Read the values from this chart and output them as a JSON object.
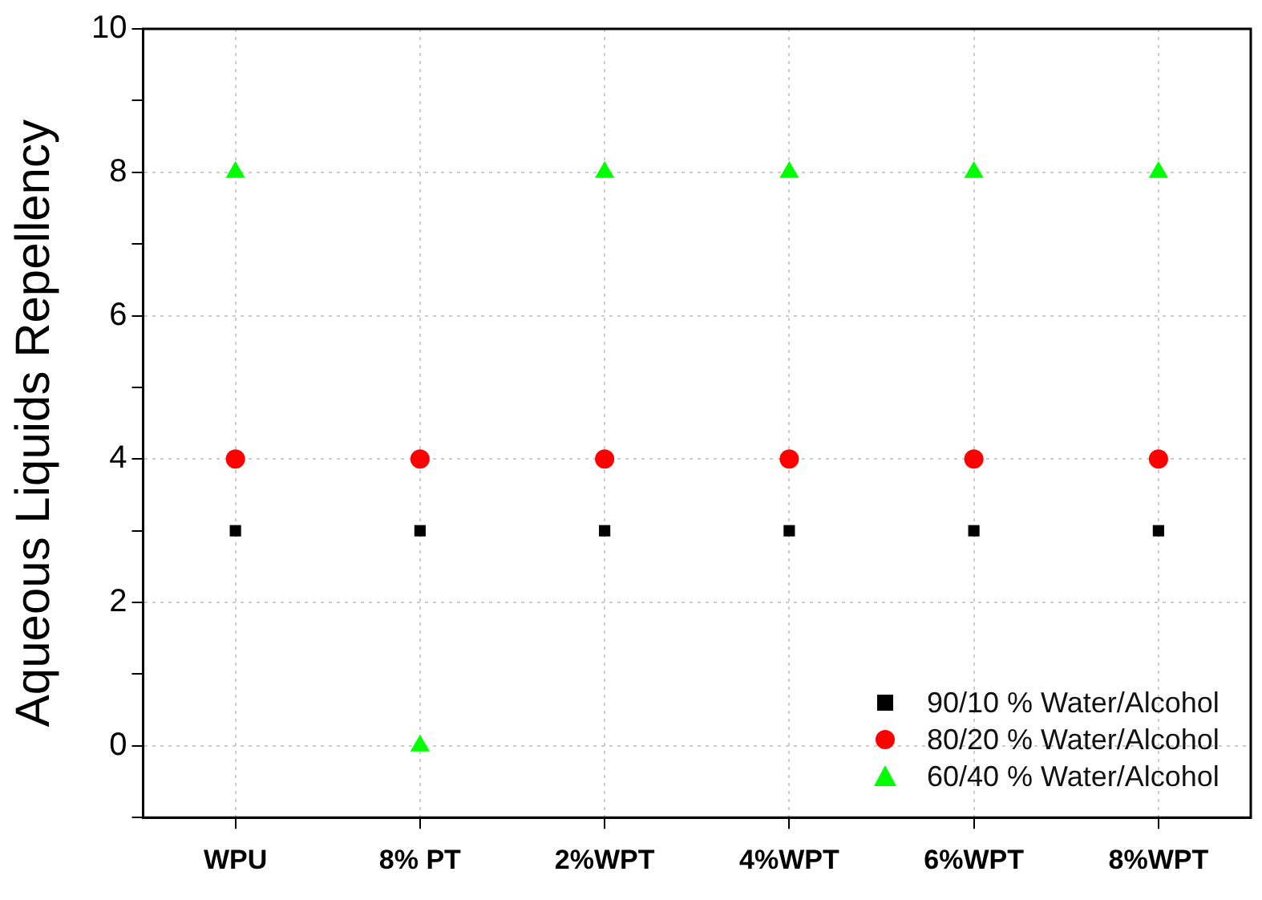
{
  "chart_data": {
    "type": "scatter",
    "ylabel": "Aqueous Liquids Repellency",
    "categories": [
      "WPU",
      "8% PT",
      "2%WPT",
      "4%WPT",
      "6%WPT",
      "8%WPT"
    ],
    "series": [
      {
        "name": "90/10 % Water/Alcohol",
        "color": "#000000",
        "marker": "square",
        "values": [
          3,
          3,
          3,
          3,
          3,
          3
        ]
      },
      {
        "name": "80/20 % Water/Alcohol",
        "color": "#ff0000",
        "marker": "circle",
        "values": [
          4,
          4,
          4,
          4,
          4,
          4
        ]
      },
      {
        "name": "60/40 % Water/Alcohol",
        "color": "#00ff00",
        "marker": "triangle",
        "values": [
          8,
          0,
          8,
          8,
          8,
          8
        ]
      }
    ],
    "ylim": [
      -1,
      10
    ],
    "yticks": [
      {
        "value": -1,
        "label": null
      },
      0,
      {
        "value": 1,
        "label": null
      },
      2,
      {
        "value": 3,
        "label": null
      },
      4,
      {
        "value": 5,
        "label": null
      },
      6,
      {
        "value": 7,
        "label": null
      },
      8,
      {
        "value": 9,
        "label": null
      },
      10
    ],
    "grid": true,
    "legend": "bottom right"
  }
}
